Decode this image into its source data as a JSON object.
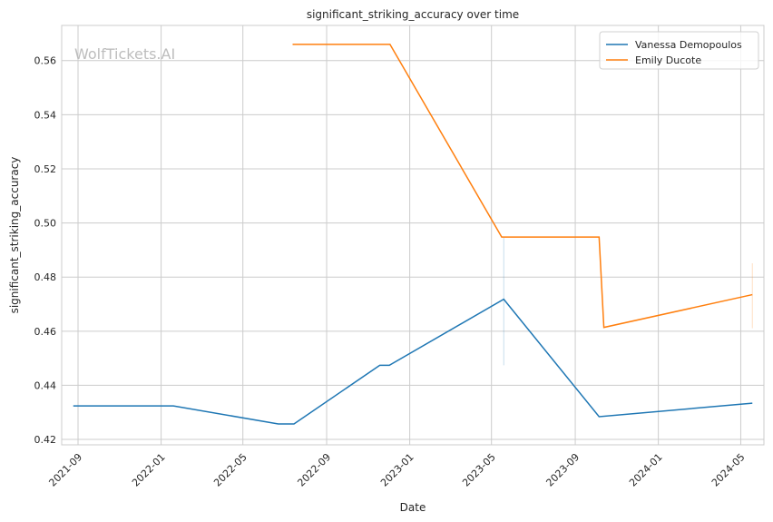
{
  "chart_data": {
    "type": "line",
    "title": "significant_striking_accuracy over time",
    "xlabel": "Date",
    "ylabel": "significant_striking_accuracy",
    "watermark": "WolfTickets.AI",
    "xlim": [
      "2021-08-08",
      "2024-06-04"
    ],
    "ylim": [
      0.418,
      0.573
    ],
    "x_ticks": [
      "2021-09",
      "2022-01",
      "2022-05",
      "2022-09",
      "2023-01",
      "2023-05",
      "2023-09",
      "2024-01",
      "2024-05"
    ],
    "y_ticks": [
      0.42,
      0.44,
      0.46,
      0.48,
      0.5,
      0.52,
      0.54,
      0.56
    ],
    "grid": true,
    "legend_position": "top-right",
    "series": [
      {
        "name": "Vanessa Demopoulos",
        "color": "#1f77b4",
        "x": [
          "2021-08-25",
          "2022-01-19",
          "2022-06-22",
          "2022-07-15",
          "2022-11-18",
          "2022-12-02",
          "2023-05-19",
          "2023-10-06",
          "2024-05-18"
        ],
        "y": [
          0.4324,
          0.4324,
          0.4257,
          0.4257,
          0.4474,
          0.4474,
          0.4718,
          0.4284,
          0.4334
        ],
        "bands": [
          {
            "x": "2023-05-19",
            "low": 0.4474,
            "high": 0.4945
          }
        ]
      },
      {
        "name": "Emily Ducote",
        "color": "#ff7f0e",
        "x": [
          "2022-07-13",
          "2022-12-03",
          "2023-05-16",
          "2023-10-06",
          "2023-10-13",
          "2024-05-18"
        ],
        "y": [
          0.566,
          0.566,
          0.4948,
          0.4948,
          0.4614,
          0.4735
        ],
        "bands": [
          {
            "x": "2024-05-18",
            "low": 0.4611,
            "high": 0.4851
          }
        ]
      }
    ]
  }
}
